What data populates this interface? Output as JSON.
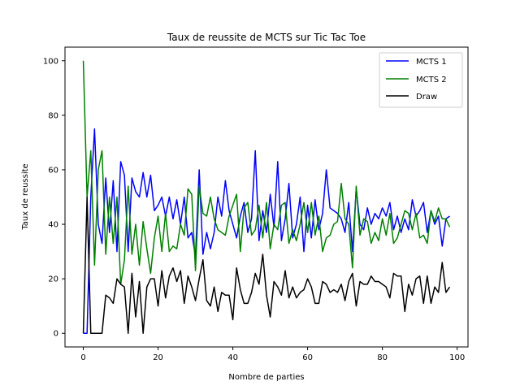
{
  "chart_data": {
    "type": "line",
    "title": "Taux de reussite de MCTS sur Tic Tac Toe",
    "xlabel": "Nombre de parties",
    "ylabel": "Taux de reussite",
    "xlim": [
      -4.9,
      102.9
    ],
    "ylim": [
      -5,
      105
    ],
    "xticks": [
      0,
      20,
      40,
      60,
      80,
      100
    ],
    "yticks": [
      0,
      20,
      40,
      60,
      80,
      100
    ],
    "grid": false,
    "legend_position": "top-right",
    "series": [
      {
        "name": "MCTS 1",
        "color": "#0000ff",
        "x": [
          0,
          1,
          2,
          3,
          4,
          5,
          6,
          7,
          8,
          9,
          10,
          11,
          12,
          13,
          14,
          15,
          16,
          17,
          18,
          19,
          20,
          21,
          22,
          23,
          24,
          25,
          26,
          27,
          28,
          29,
          30,
          31,
          32,
          33,
          34,
          35,
          36,
          37,
          38,
          39,
          40,
          41,
          42,
          43,
          44,
          45,
          46,
          47,
          48,
          49,
          50,
          51,
          52,
          53,
          54,
          55,
          56,
          57,
          58,
          59,
          60,
          61,
          62,
          63,
          64,
          65,
          66,
          67,
          68,
          69,
          70,
          71,
          72,
          73,
          74,
          75,
          76,
          77,
          78,
          79,
          80,
          81,
          82,
          83,
          84,
          85,
          86,
          87,
          88,
          89,
          90,
          91,
          92,
          93,
          94,
          95,
          96,
          97,
          98
        ],
        "values": [
          0,
          0,
          50,
          75,
          40,
          33,
          57,
          37,
          56,
          30,
          63,
          58,
          30,
          57,
          52,
          50,
          59,
          50,
          58,
          45,
          47,
          50,
          43,
          50,
          42,
          49,
          40,
          50,
          35,
          37,
          28,
          60,
          29,
          37,
          31,
          37,
          50,
          43,
          56,
          45,
          40,
          35,
          43,
          48,
          37,
          42,
          67,
          34,
          45,
          37,
          51,
          39,
          63,
          34,
          42,
          55,
          35,
          40,
          50,
          30,
          47,
          35,
          49,
          38,
          44,
          60,
          46,
          45,
          44,
          42,
          37,
          48,
          30,
          53,
          40,
          38,
          46,
          40,
          44,
          42,
          46,
          43,
          48,
          38,
          43,
          37,
          42,
          38,
          49,
          43,
          45,
          48,
          37,
          45,
          40,
          43,
          32,
          42,
          43
        ]
      },
      {
        "name": "MCTS 2",
        "color": "#008000",
        "x": [
          0,
          1,
          2,
          3,
          4,
          5,
          6,
          7,
          8,
          9,
          10,
          11,
          12,
          13,
          14,
          15,
          16,
          17,
          18,
          19,
          20,
          21,
          22,
          23,
          24,
          25,
          26,
          27,
          28,
          29,
          30,
          31,
          32,
          33,
          34,
          35,
          36,
          37,
          38,
          39,
          40,
          41,
          42,
          43,
          44,
          45,
          46,
          47,
          48,
          49,
          50,
          51,
          52,
          53,
          54,
          55,
          56,
          57,
          58,
          59,
          60,
          61,
          62,
          63,
          64,
          65,
          66,
          67,
          68,
          69,
          70,
          71,
          72,
          73,
          74,
          75,
          76,
          77,
          78,
          79,
          80,
          81,
          82,
          83,
          84,
          85,
          86,
          87,
          88,
          89,
          90,
          91,
          92,
          93,
          94,
          95,
          96,
          97,
          98
        ],
        "values": [
          100,
          50,
          67,
          25,
          60,
          67,
          29,
          50,
          33,
          50,
          18,
          27,
          54,
          29,
          40,
          25,
          41,
          31,
          22,
          35,
          43,
          30,
          44,
          30,
          32,
          31,
          40,
          36,
          53,
          51,
          23,
          54,
          44,
          43,
          50,
          42,
          38,
          37,
          36,
          43,
          47,
          51,
          30,
          46,
          48,
          36,
          38,
          47,
          35,
          48,
          31,
          40,
          38,
          47,
          48,
          33,
          38,
          34,
          40,
          48,
          37,
          48,
          36,
          43,
          30,
          35,
          36,
          40,
          41,
          55,
          42,
          40,
          24,
          54,
          36,
          42,
          41,
          33,
          37,
          34,
          42,
          36,
          44,
          33,
          35,
          40,
          45,
          44,
          38,
          44,
          35,
          36,
          33,
          45,
          41,
          46,
          42,
          42,
          39
        ]
      },
      {
        "name": "Draw",
        "color": "#000000",
        "x": [
          0,
          1,
          2,
          3,
          4,
          5,
          6,
          7,
          8,
          9,
          10,
          11,
          12,
          13,
          14,
          15,
          16,
          17,
          18,
          19,
          20,
          21,
          22,
          23,
          24,
          25,
          26,
          27,
          28,
          29,
          30,
          31,
          32,
          33,
          34,
          35,
          36,
          37,
          38,
          39,
          40,
          41,
          42,
          43,
          44,
          45,
          46,
          47,
          48,
          49,
          50,
          51,
          52,
          53,
          54,
          55,
          56,
          57,
          58,
          59,
          60,
          61,
          62,
          63,
          64,
          65,
          66,
          67,
          68,
          69,
          70,
          71,
          72,
          73,
          74,
          75,
          76,
          77,
          78,
          79,
          80,
          81,
          82,
          83,
          84,
          85,
          86,
          87,
          88,
          89,
          90,
          91,
          92,
          93,
          94,
          95,
          96,
          97,
          98
        ],
        "values": [
          0,
          50,
          0,
          0,
          0,
          0,
          14,
          13,
          11,
          20,
          18,
          17,
          0,
          22,
          6,
          19,
          0,
          17,
          20,
          20,
          10,
          23,
          13,
          21,
          24,
          19,
          23,
          11,
          21,
          17,
          12,
          20,
          27,
          12,
          10,
          17,
          8,
          15,
          14,
          14,
          5,
          24,
          16,
          11,
          11,
          15,
          22,
          18,
          29,
          14,
          6,
          19,
          17,
          14,
          23,
          13,
          17,
          13,
          15,
          16,
          20,
          17,
          11,
          11,
          19,
          18,
          15,
          16,
          15,
          18,
          12,
          19,
          22,
          10,
          19,
          18,
          18,
          21,
          19,
          19,
          18,
          17,
          13,
          22,
          21,
          21,
          8,
          18,
          14,
          20,
          21,
          11,
          21,
          11,
          17,
          15,
          26,
          15,
          17
        ]
      }
    ]
  }
}
